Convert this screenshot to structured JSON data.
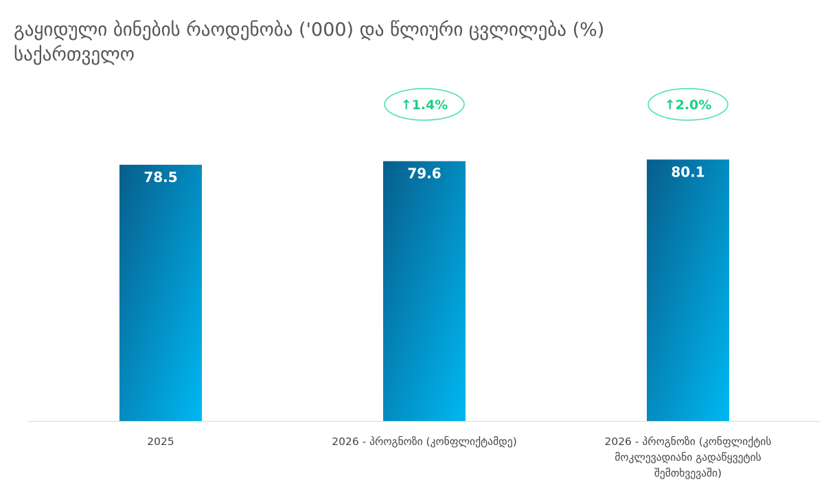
{
  "chart_data": {
    "type": "bar",
    "title": "გაყიდული ბინების რაოდენობა ('000) და წლიური ცვლილება (%)",
    "subtitle": "საქართველო",
    "categories": [
      "2025",
      "2026 - პროგნოზი (კონფლიქტამდე)",
      "2026 - პროგნოზი (კონფლიქტის მოკლევადიანი გადაწყვეტის შემთხვევაში)"
    ],
    "values": [
      78.5,
      79.6,
      80.1
    ],
    "data_labels": [
      "78.5",
      "79.6",
      "80.1"
    ],
    "annotations": [
      null,
      "↑1.4%",
      "↑2.0%"
    ],
    "ylim": [
      0,
      85
    ],
    "xlabel": "",
    "ylabel": "",
    "grid": false,
    "colors": {
      "bar_dark": "#075e8c",
      "bar_light": "#00b8f2",
      "badge": "#3fe0a6",
      "badge_text": "#1ccf86",
      "axis": "#d9d9d9"
    }
  }
}
